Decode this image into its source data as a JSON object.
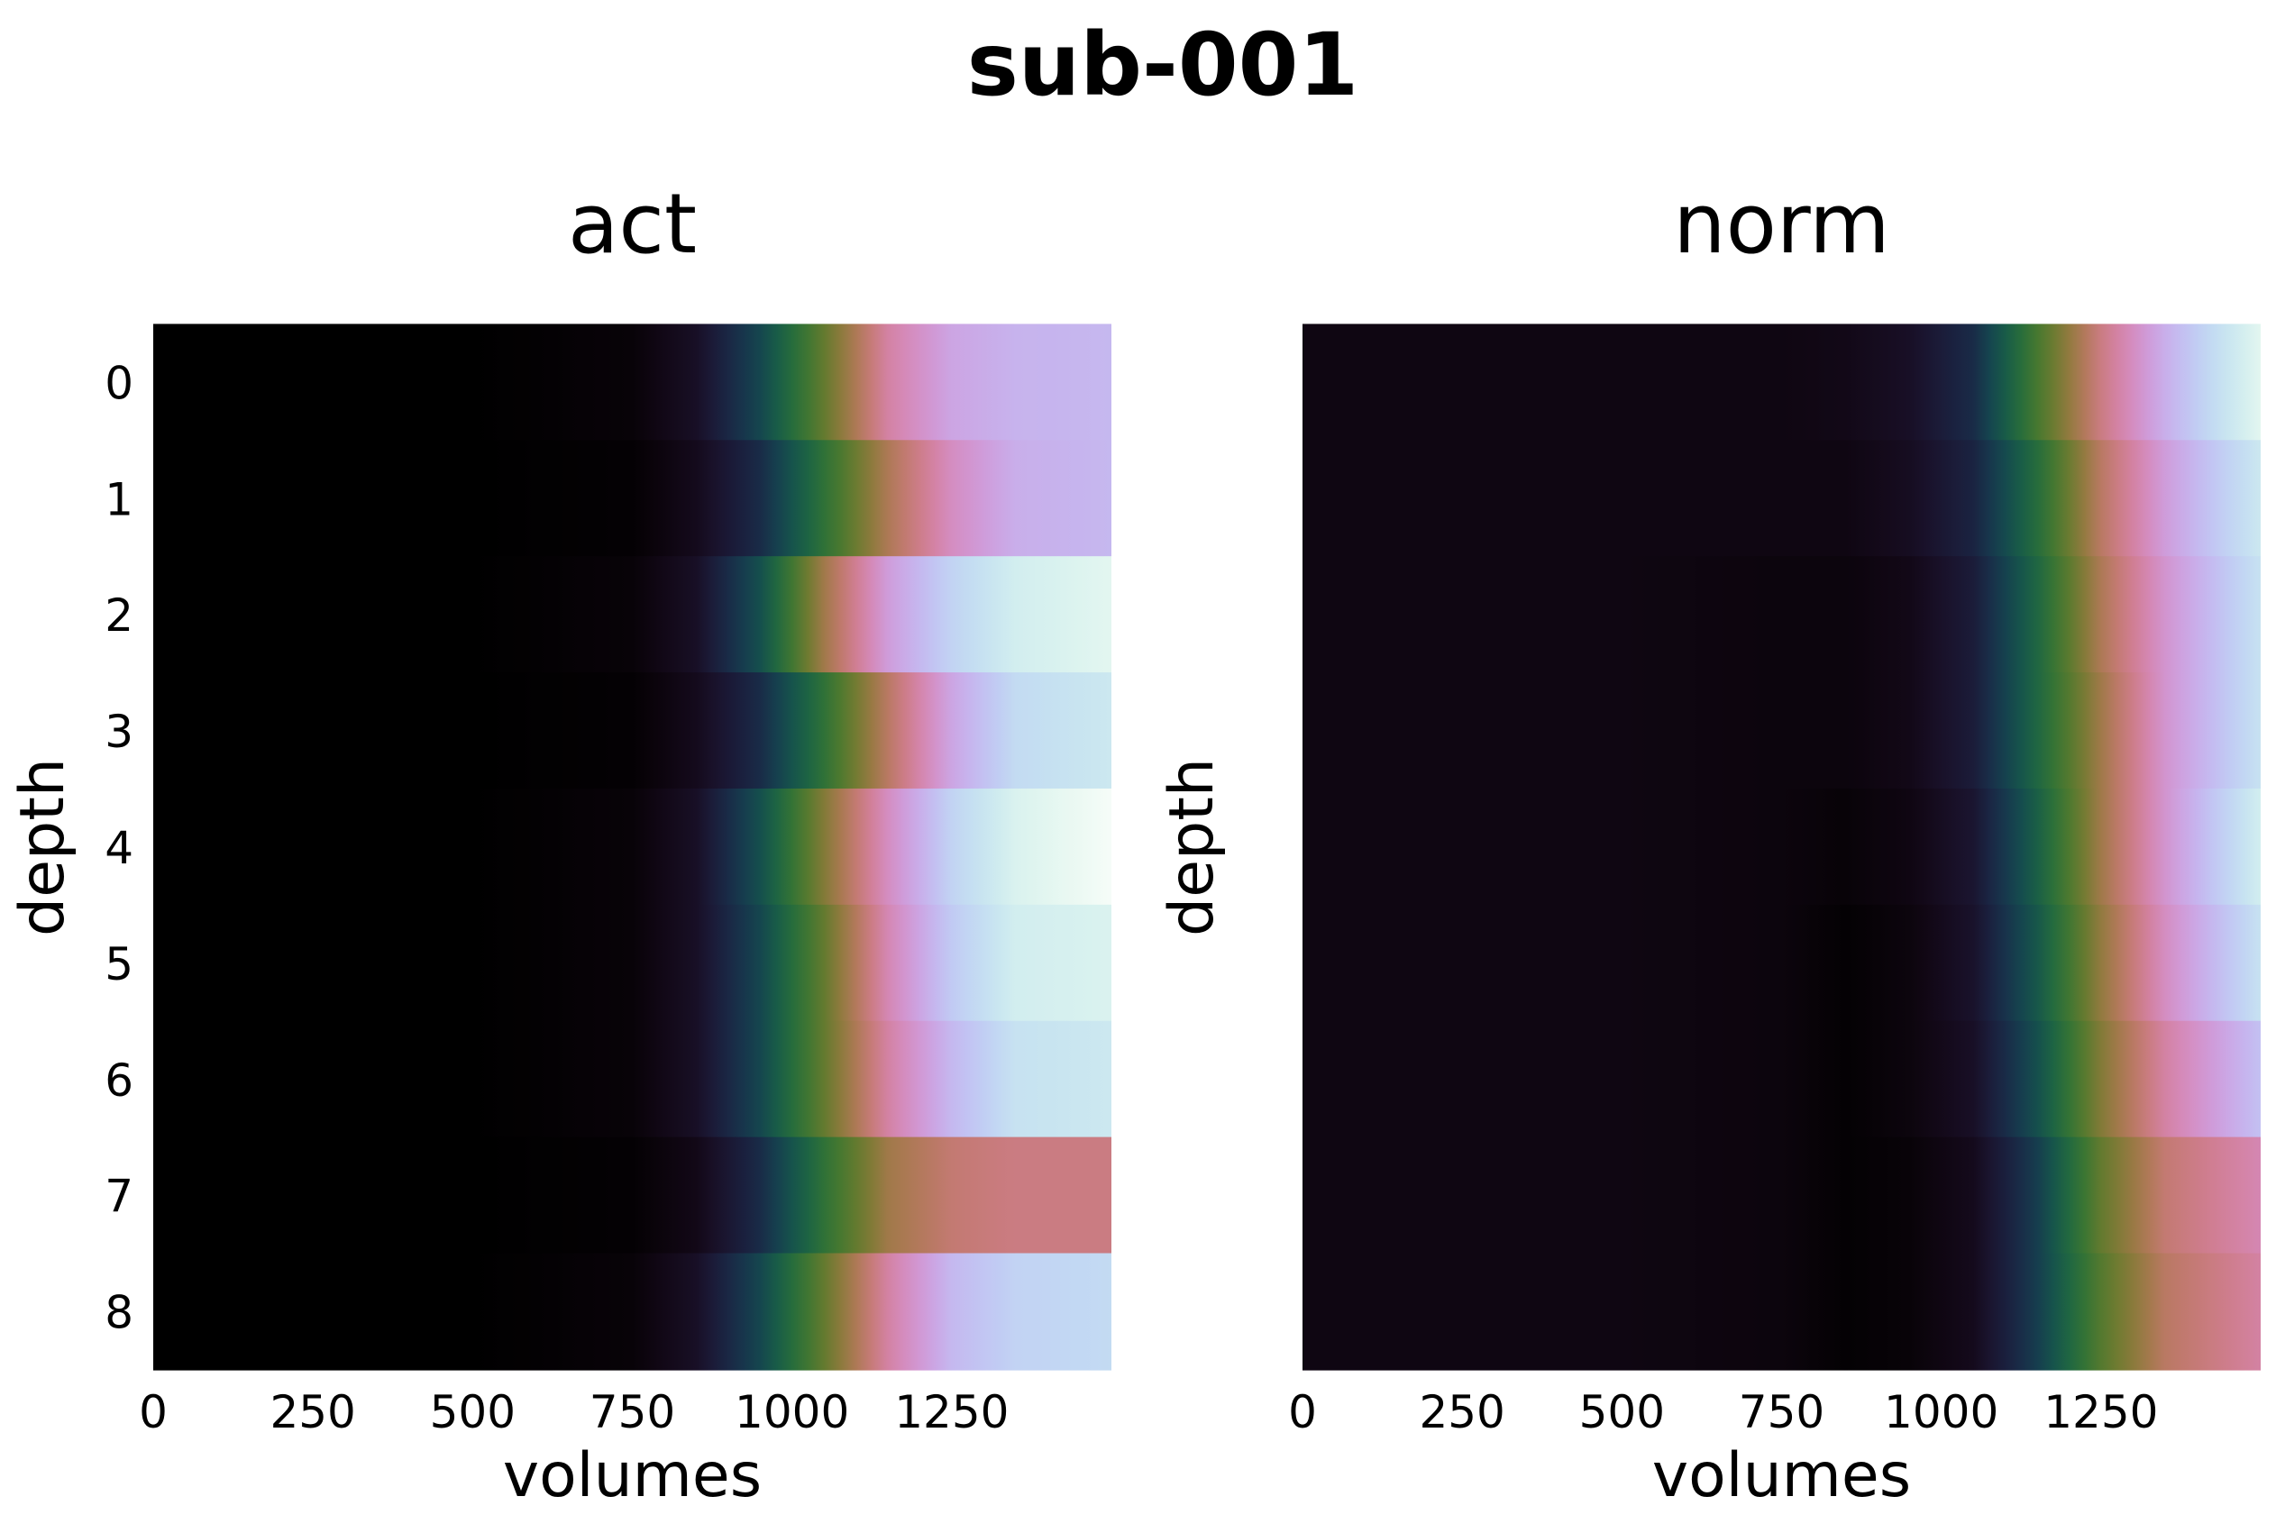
{
  "figure": {
    "title": "sub-001"
  },
  "chart_data": [
    {
      "type": "heatmap",
      "title": "act",
      "xlabel": "volumes",
      "ylabel": "depth",
      "x_ticks": [
        0,
        250,
        500,
        750,
        1000,
        1250
      ],
      "y_ticks": [
        0,
        1,
        2,
        3,
        4,
        5,
        6,
        7,
        8
      ],
      "xlim": [
        0,
        1500
      ],
      "ylim": [
        8.5,
        -0.5
      ],
      "colormap": "cubehelix",
      "value_range": [
        0,
        1
      ],
      "depths": [
        0,
        1,
        2,
        3,
        4,
        5,
        6,
        7,
        8
      ],
      "volumes": [
        0,
        250,
        500,
        750,
        850,
        950,
        1050,
        1150,
        1250,
        1350,
        1500
      ],
      "values": [
        [
          0,
          0,
          0,
          0.02,
          0.08,
          0.22,
          0.42,
          0.62,
          0.72,
          0.75,
          0.76
        ],
        [
          0,
          0,
          0,
          0.01,
          0.06,
          0.16,
          0.34,
          0.52,
          0.66,
          0.74,
          0.76
        ],
        [
          0,
          0,
          0,
          0.02,
          0.08,
          0.24,
          0.5,
          0.7,
          0.82,
          0.9,
          0.94
        ],
        [
          0,
          0,
          0,
          0.01,
          0.06,
          0.16,
          0.34,
          0.54,
          0.72,
          0.84,
          0.88
        ],
        [
          0,
          0,
          0,
          0.02,
          0.08,
          0.24,
          0.46,
          0.66,
          0.82,
          0.92,
          0.98
        ],
        [
          0,
          0,
          0,
          0.02,
          0.08,
          0.22,
          0.42,
          0.64,
          0.8,
          0.9,
          0.92
        ],
        [
          0,
          0,
          0,
          0.02,
          0.08,
          0.22,
          0.42,
          0.62,
          0.76,
          0.86,
          0.88
        ],
        [
          0,
          0,
          0,
          0.01,
          0.05,
          0.16,
          0.34,
          0.5,
          0.56,
          0.58,
          0.58
        ],
        [
          0,
          0,
          0,
          0.02,
          0.08,
          0.22,
          0.42,
          0.62,
          0.76,
          0.82,
          0.84
        ]
      ]
    },
    {
      "type": "heatmap",
      "title": "norm",
      "xlabel": "volumes",
      "ylabel": "depth",
      "x_ticks": [
        0,
        250,
        500,
        750,
        1000,
        1250
      ],
      "y_ticks": [],
      "xlim": [
        0,
        1500
      ],
      "ylim": [
        8.5,
        -0.5
      ],
      "colormap": "cubehelix",
      "value_range": [
        0,
        1
      ],
      "depths": [
        0,
        1,
        2,
        3,
        4,
        5,
        6,
        7,
        8
      ],
      "volumes": [
        0,
        250,
        500,
        750,
        850,
        950,
        1050,
        1150,
        1250,
        1350,
        1500
      ],
      "values": [
        [
          0.04,
          0.04,
          0.04,
          0.04,
          0.05,
          0.08,
          0.16,
          0.38,
          0.58,
          0.74,
          0.94
        ],
        [
          0.04,
          0.04,
          0.04,
          0.04,
          0.04,
          0.07,
          0.14,
          0.32,
          0.54,
          0.7,
          0.88
        ],
        [
          0.04,
          0.04,
          0.04,
          0.03,
          0.03,
          0.05,
          0.12,
          0.3,
          0.52,
          0.68,
          0.86
        ],
        [
          0.04,
          0.04,
          0.04,
          0.03,
          0.03,
          0.05,
          0.12,
          0.3,
          0.5,
          0.68,
          0.86
        ],
        [
          0.04,
          0.04,
          0.04,
          0.03,
          0.02,
          0.04,
          0.1,
          0.28,
          0.5,
          0.68,
          0.9
        ],
        [
          0.04,
          0.04,
          0.04,
          0.03,
          0.01,
          0.03,
          0.09,
          0.26,
          0.48,
          0.66,
          0.86
        ],
        [
          0.04,
          0.04,
          0.04,
          0.03,
          0.01,
          0.03,
          0.08,
          0.24,
          0.46,
          0.62,
          0.78
        ],
        [
          0.04,
          0.04,
          0.04,
          0.03,
          0.01,
          0.02,
          0.06,
          0.2,
          0.42,
          0.56,
          0.64
        ],
        [
          0.04,
          0.04,
          0.04,
          0.03,
          0.01,
          0.02,
          0.06,
          0.2,
          0.4,
          0.54,
          0.62
        ]
      ]
    }
  ]
}
